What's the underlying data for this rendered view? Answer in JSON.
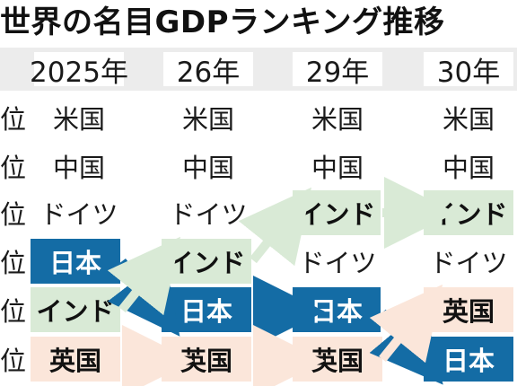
{
  "title": "世界の名目GDPランキング推移",
  "years": [
    "2025年",
    "26年",
    "29年",
    "30年"
  ],
  "ranks": [
    "位",
    "位",
    "位",
    "位",
    "位",
    "位"
  ],
  "table": [
    [
      "米国",
      "米国",
      "米国",
      "米国"
    ],
    [
      "中国",
      "中国",
      "中国",
      "中国"
    ],
    [
      "ドイツ",
      "ドイツ",
      "インド",
      "インド"
    ],
    [
      "日本",
      "インド",
      "ドイツ",
      "ドイツ"
    ],
    [
      "インド",
      "日本",
      "日本",
      "英国"
    ],
    [
      "英国",
      "英国",
      "英国",
      "日本"
    ]
  ],
  "colors": {
    "japan": "#146ca5",
    "india": "#d9ead6",
    "uk": "#fbe6da",
    "header": "#ececec"
  }
}
